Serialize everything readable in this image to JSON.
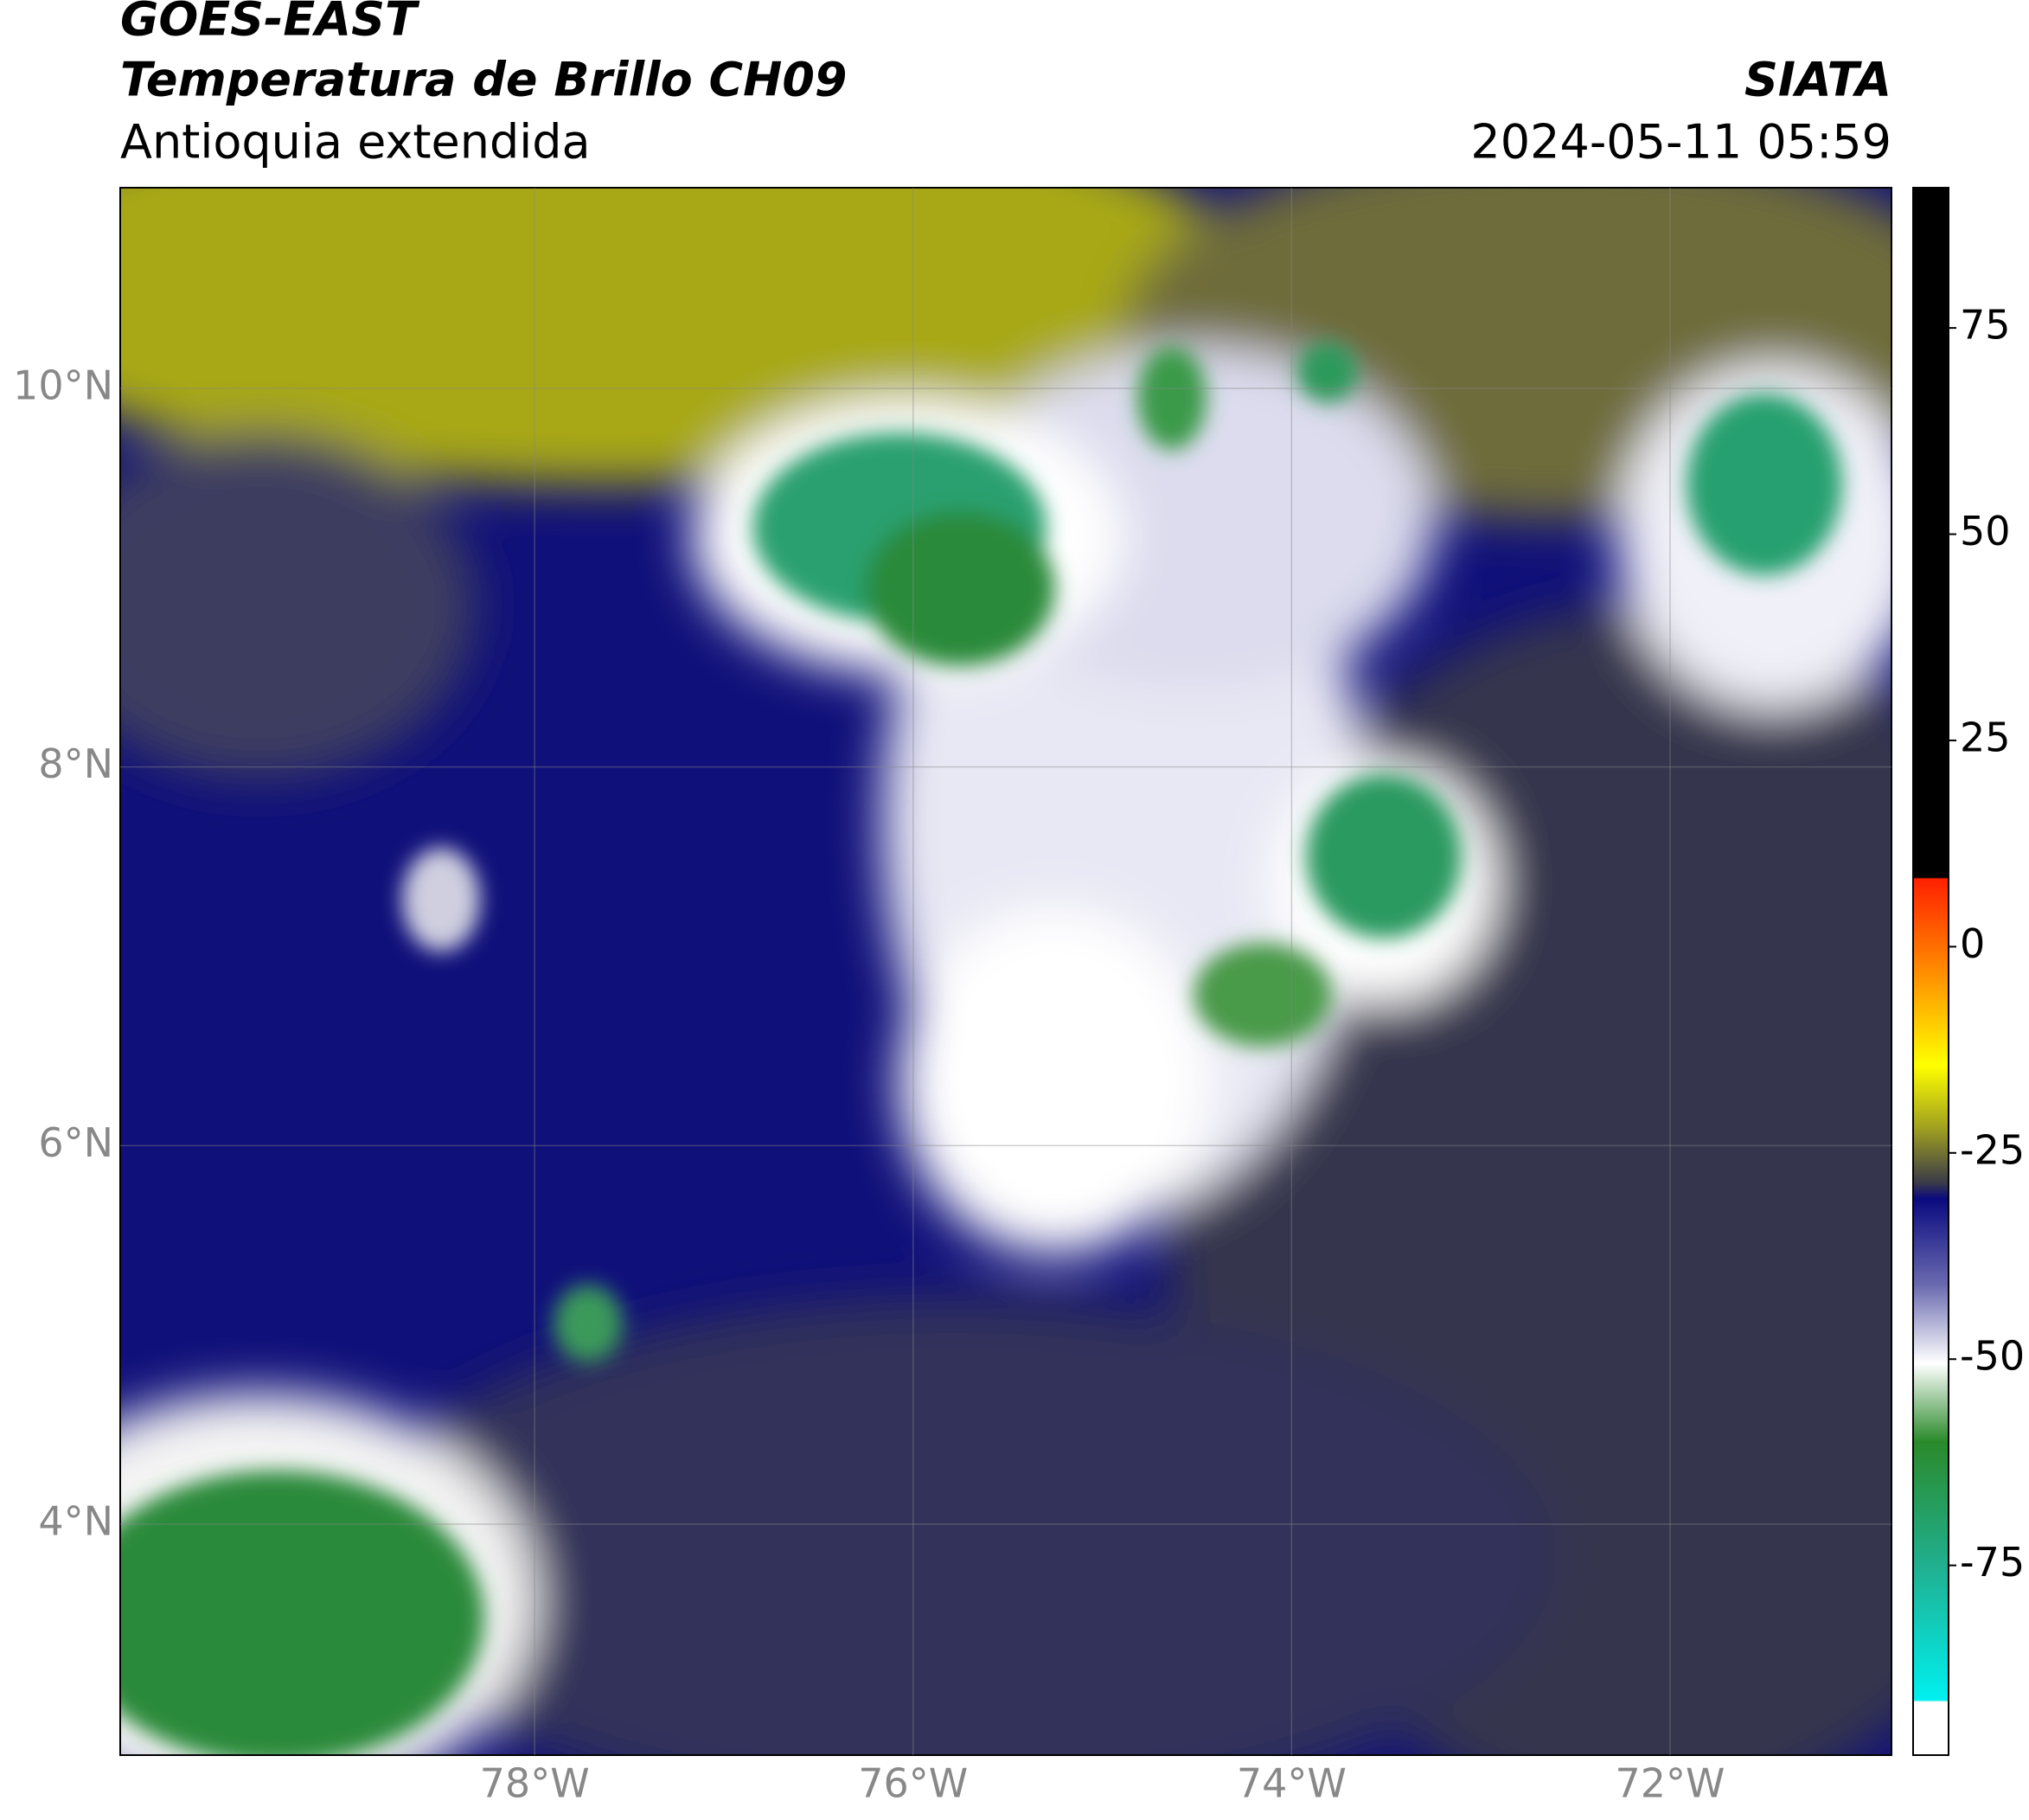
{
  "header": {
    "title": "GOES-EAST",
    "subtitle": "Temperatura de Brillo CH09",
    "region": "Antioquia extendida",
    "source": "SIATA",
    "datetime": "2024-05-11 05:59"
  },
  "map": {
    "lat_range": [
      2.78,
      11.06
    ],
    "lon_range": [
      -80.19,
      -70.83
    ],
    "lat_ticks": [
      {
        "value": 10,
        "label": "10°N"
      },
      {
        "value": 8,
        "label": "8°N"
      },
      {
        "value": 6,
        "label": "6°N"
      },
      {
        "value": 4,
        "label": "4°N"
      }
    ],
    "lon_ticks": [
      {
        "value": -78,
        "label": "78°W"
      },
      {
        "value": -76,
        "label": "76°W"
      },
      {
        "value": -74,
        "label": "74°W"
      },
      {
        "value": -72,
        "label": "72°W"
      }
    ]
  },
  "colorbar": {
    "range": [
      -98,
      92
    ],
    "ticks": [
      75,
      50,
      25,
      0,
      -25,
      -50,
      -75
    ]
  }
}
